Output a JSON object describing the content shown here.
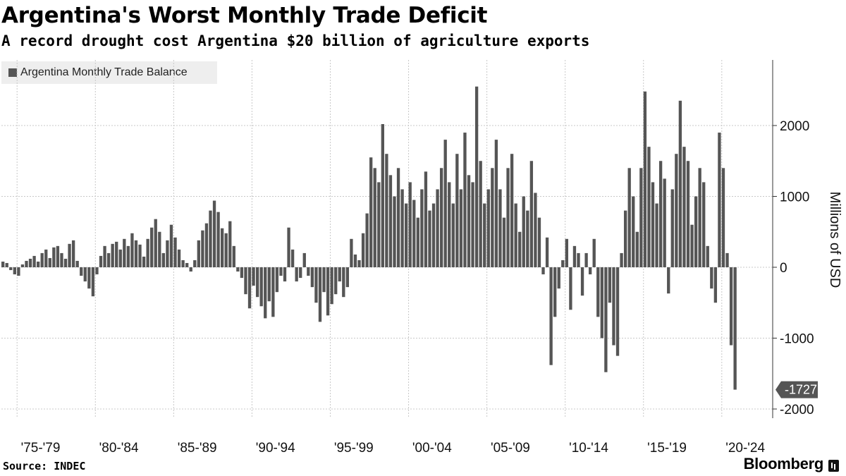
{
  "chart_data": {
    "type": "bar",
    "title": "Argentina's Worst Monthly Trade Deficit",
    "subtitle": "A record drought cost Argentina $20 billion of agriculture exports",
    "legend": [
      "Argentina Monthly Trade Balance"
    ],
    "legend_position": "top-left",
    "xlabel": "",
    "ylabel": "Millions of USD",
    "ylim": [
      -2100,
      2900
    ],
    "yticks": [
      -2000,
      -1000,
      0,
      1000,
      2000
    ],
    "ytick_labels": [
      "-2000",
      "-1000",
      "0",
      "1000",
      "2000"
    ],
    "grid": true,
    "xlim": [
      1975,
      2024
    ],
    "x_tick_labels": [
      "'75-'79",
      "'80-'84",
      "'85-'89",
      "'90-'94",
      "'95-'99",
      "'00-'04",
      "'05-'09",
      "'10-'14",
      "'15-'19",
      "'20-'24"
    ],
    "x_ticks_year": [
      1977.5,
      1982.5,
      1987.5,
      1992.5,
      1997.5,
      2002.5,
      2007.5,
      2012.5,
      2017.5,
      2022.5
    ],
    "x_grid_years": [
      1976,
      1981,
      1986,
      1991,
      1996,
      2001,
      2006,
      2011,
      2016,
      2021
    ],
    "series": [
      {
        "name": "Argentina Monthly Trade Balance",
        "frequency": "quarterly-averaged sample of monthly data",
        "start": 1975.0,
        "step": 0.25,
        "values": [
          80,
          60,
          -40,
          -100,
          -120,
          40,
          90,
          120,
          160,
          80,
          200,
          250,
          130,
          280,
          300,
          200,
          120,
          330,
          380,
          90,
          -120,
          -200,
          -300,
          -410,
          -100,
          160,
          300,
          200,
          330,
          360,
          250,
          400,
          300,
          480,
          380,
          320,
          150,
          400,
          560,
          680,
          500,
          200,
          380,
          600,
          420,
          250,
          100,
          60,
          -60,
          100,
          380,
          520,
          620,
          800,
          940,
          780,
          550,
          480,
          650,
          300,
          -60,
          -150,
          -380,
          -580,
          -260,
          -420,
          -550,
          -720,
          -480,
          -700,
          -350,
          -120,
          -200,
          560,
          250,
          -200,
          -150,
          200,
          -120,
          -280,
          -500,
          -770,
          -350,
          -680,
          -520,
          -380,
          -200,
          -420,
          -280,
          400,
          180,
          100,
          480,
          760,
          1550,
          1400,
          1200,
          2020,
          1600,
          1300,
          1000,
          1400,
          1100,
          900,
          1200,
          950,
          700,
          1100,
          1350,
          800,
          900,
          1100,
          1400,
          1800,
          1200,
          900,
          1600,
          1100,
          1900,
          1300,
          1200,
          2550,
          1500,
          900,
          1100,
          1400,
          1800,
          1100,
          700,
          1400,
          1600,
          900,
          500,
          1000,
          800,
          1500,
          1050,
          700,
          -100,
          420,
          -1380,
          -700,
          -300,
          100,
          400,
          -600,
          300,
          200,
          -400,
          200,
          -100,
          400,
          -700,
          -1000,
          -1480,
          -500,
          -1100,
          -1250,
          200,
          800,
          1400,
          1000,
          500,
          1400,
          2480,
          1700,
          1200,
          900,
          1500,
          1250,
          -370,
          1100,
          1600,
          2350,
          1700,
          1500,
          600,
          1000,
          1400,
          1200,
          300,
          -300,
          -500,
          1900,
          1400,
          200,
          -1100,
          -1727
        ]
      }
    ],
    "annotations": [
      {
        "label": "-1727",
        "value": -1727
      }
    ]
  },
  "footer": {
    "source": "Source: INDEC",
    "brand": "Bloomberg"
  }
}
